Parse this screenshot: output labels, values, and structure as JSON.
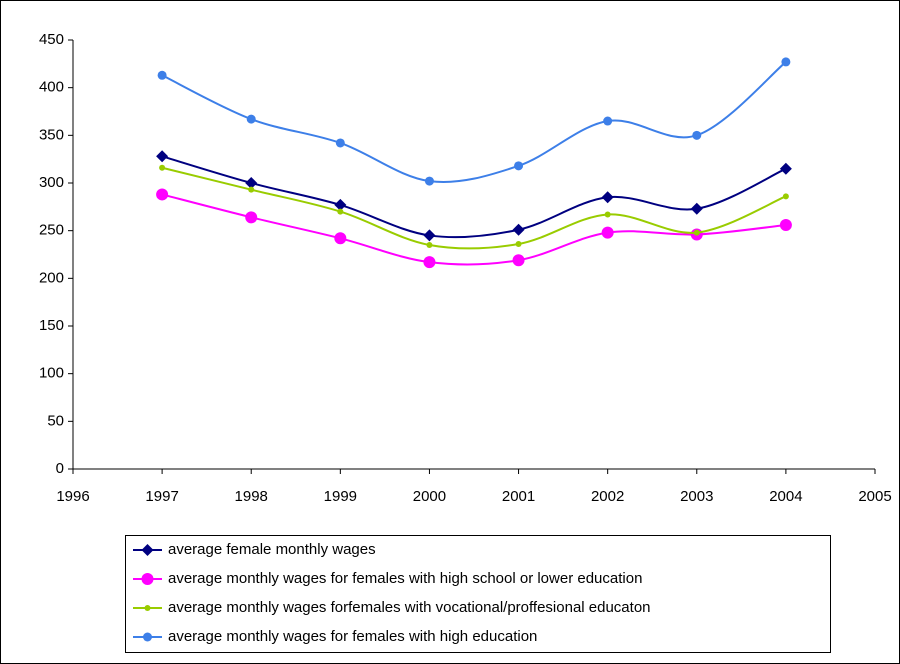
{
  "chart_data": {
    "type": "line",
    "x": [
      1997,
      1998,
      1999,
      2000,
      2001,
      2002,
      2003,
      2004
    ],
    "xlim": [
      1996,
      2005
    ],
    "xticks": [
      1996,
      1997,
      1998,
      1999,
      2000,
      2001,
      2002,
      2003,
      2004,
      2005
    ],
    "ylim": [
      0,
      450
    ],
    "yticks": [
      0,
      50,
      100,
      150,
      200,
      250,
      300,
      350,
      400,
      450
    ],
    "smooth": true,
    "series": [
      {
        "name": "average female monthly wages",
        "color": "#000080",
        "marker": "diamond",
        "values": [
          328,
          300,
          277,
          245,
          251,
          285,
          273,
          315
        ]
      },
      {
        "name": "average monthly wages for females with high school or lower education",
        "color": "#ff00ff",
        "marker": "circle-large",
        "values": [
          288,
          264,
          242,
          217,
          219,
          248,
          246,
          256
        ]
      },
      {
        "name": "average monthly wages forfemales with vocational/proffesional educaton",
        "color": "#99cc00",
        "marker": "circle-small",
        "values": [
          316,
          293,
          270,
          235,
          236,
          267,
          248,
          286
        ]
      },
      {
        "name": "average monthly wages for females with high education",
        "color": "#3d7fe8",
        "marker": "circle",
        "values": [
          413,
          367,
          342,
          302,
          318,
          365,
          350,
          427
        ]
      }
    ]
  }
}
